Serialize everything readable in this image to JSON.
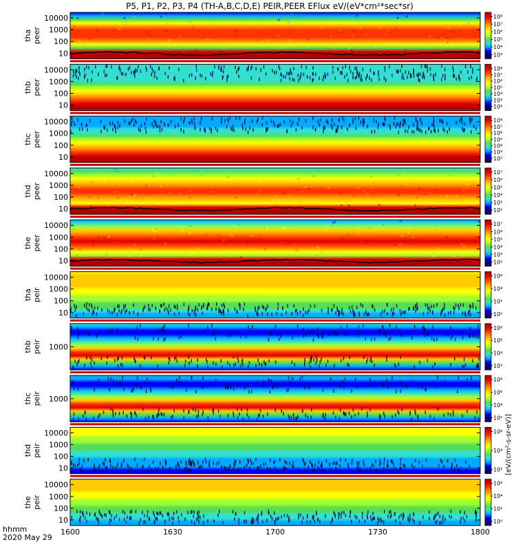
{
  "title": "P5, P1, P2, P3, P4 (TH-A,B,C,D,E) PEIR,PEER EFlux eV/(eV*cm²*sec*sr)",
  "colors": {
    "colormap": [
      "#2a0044",
      "#000080",
      "#0000ff",
      "#00aaff",
      "#33e0d0",
      "#55dd55",
      "#a0ff30",
      "#ffff00",
      "#ffcc00",
      "#ff8800",
      "#ff3300",
      "#dd0000",
      "#b00000"
    ]
  },
  "chart_data": {
    "type": "heatmap",
    "title": "P5, P1, P2, P3, P4 (TH-A,B,C,D,E) PEIR,PEER EFlux eV/(eV*cm²*sec*sr)",
    "x_axis": {
      "range": [
        "16:00",
        "18:00"
      ],
      "tick_labels": [
        "1600",
        "1630",
        "1700",
        "1730",
        "1800"
      ],
      "label_lines": [
        "hhmm",
        "2020 May 29"
      ]
    },
    "colorbar_label": "[eV/(cm²-s-sr-eV)]",
    "panels": [
      {
        "name": "tha peer",
        "ylabel_lines": [
          "tha",
          "peer"
        ],
        "yticks": [
          "10000",
          "1000",
          "100",
          "10"
        ],
        "cbar_ticks": [
          "10⁸",
          "10⁷",
          "10⁶",
          "10⁵",
          "10⁴",
          "10³"
        ],
        "profile": [
          2,
          3,
          5,
          7,
          9,
          10,
          10,
          10,
          9,
          7,
          5,
          11,
          12,
          12
        ],
        "noise_top": false,
        "noise_bottom": false,
        "spacecraft_potential": true
      },
      {
        "name": "thb peer",
        "ylabel_lines": [
          "thb",
          "peer"
        ],
        "yticks": [
          "10000",
          "1000",
          "100",
          "10"
        ],
        "cbar_ticks": [
          "10⁸",
          "10⁷",
          "10⁶",
          "10⁵",
          "10⁴",
          "10³",
          "10²"
        ],
        "profile": [
          4,
          4,
          4,
          4,
          4,
          4,
          5,
          6,
          7,
          8,
          9,
          10,
          11,
          12,
          12
        ],
        "noise_top": true,
        "noise_bottom": false,
        "spacecraft_potential": false
      },
      {
        "name": "thc peer",
        "ylabel_lines": [
          "thc",
          "peer"
        ],
        "yticks": [
          "10000",
          "1000",
          "100",
          "10"
        ],
        "cbar_ticks": [
          "10⁸",
          "10⁷",
          "10⁶",
          "10⁵",
          "10⁴",
          "10³",
          "10²"
        ],
        "profile": [
          3,
          3,
          3,
          3,
          4,
          4,
          5,
          6,
          7,
          8,
          9,
          10,
          11,
          12,
          12
        ],
        "noise_top": true,
        "noise_bottom": false,
        "spacecraft_potential": false
      },
      {
        "name": "thd peer",
        "ylabel_lines": [
          "thd",
          "peer"
        ],
        "yticks": [
          "10000",
          "1000",
          "100",
          "10"
        ],
        "cbar_ticks": [
          "10⁷",
          "10⁶",
          "10⁵",
          "10⁴",
          "10³",
          "10²"
        ],
        "profile": [
          4,
          5,
          6,
          7,
          8,
          9,
          10,
          10,
          9,
          8,
          7,
          11,
          12,
          12
        ],
        "noise_top": false,
        "noise_bottom": false,
        "spacecraft_potential": true
      },
      {
        "name": "the peer",
        "ylabel_lines": [
          "the",
          "peer"
        ],
        "yticks": [
          "10000",
          "1000",
          "100",
          "10"
        ],
        "cbar_ticks": [
          "10⁷",
          "10⁶",
          "10⁵",
          "10⁴",
          "10³",
          "10²"
        ],
        "profile": [
          3,
          4,
          6,
          8,
          9,
          10,
          11,
          10,
          9,
          7,
          6,
          11,
          12,
          12
        ],
        "noise_top": false,
        "noise_bottom": false,
        "spacecraft_potential": true
      },
      {
        "name": "tha peir",
        "ylabel_lines": [
          "tha",
          "peir"
        ],
        "yticks": [
          "10000",
          "1000",
          "100",
          "10"
        ],
        "cbar_ticks": [
          "10⁶",
          "10⁴",
          "10²",
          "10⁰"
        ],
        "profile": [
          7,
          8,
          8,
          8,
          8,
          7,
          7,
          6,
          6,
          5,
          5,
          4,
          3,
          3
        ],
        "noise_top": false,
        "noise_bottom": true,
        "spacecraft_potential": false
      },
      {
        "name": "thb peir",
        "ylabel_lines": [
          "thb",
          "peir"
        ],
        "yticks": [
          "1000"
        ],
        "cbar_ticks": [
          "10⁸",
          "10⁶",
          "10⁴",
          "10²"
        ],
        "profile": [
          4,
          3,
          2,
          2,
          3,
          4,
          6,
          8,
          10,
          11,
          8,
          5,
          3,
          2
        ],
        "noise_top": true,
        "noise_bottom": true,
        "spacecraft_potential": false
      },
      {
        "name": "thc peir",
        "ylabel_lines": [
          "thc",
          "peir"
        ],
        "yticks": [
          "1000"
        ],
        "cbar_ticks": [
          "10⁸",
          "10⁶",
          "10⁴",
          "10²"
        ],
        "profile": [
          3,
          3,
          2,
          2,
          3,
          4,
          6,
          8,
          10,
          11,
          8,
          5,
          3,
          2
        ],
        "noise_top": true,
        "noise_bottom": true,
        "spacecraft_potential": false
      },
      {
        "name": "thd peir",
        "ylabel_lines": [
          "thd",
          "peir"
        ],
        "yticks": [
          "10000",
          "1000",
          "100",
          "10"
        ],
        "cbar_ticks": [
          "10⁶",
          "10⁴",
          "10²"
        ],
        "profile": [
          7,
          7,
          7,
          6,
          6,
          5,
          5,
          4,
          4,
          3,
          3,
          3,
          2,
          2
        ],
        "noise_top": false,
        "noise_bottom": true,
        "spacecraft_potential": false
      },
      {
        "name": "the peir",
        "ylabel_lines": [
          "the",
          "peir"
        ],
        "yticks": [
          "10000",
          "1000",
          "100",
          "10"
        ],
        "cbar_ticks": [
          "10⁶",
          "10⁴",
          "10²",
          "10⁰"
        ],
        "profile": [
          8,
          8,
          8,
          8,
          7,
          7,
          6,
          6,
          5,
          5,
          4,
          4,
          3,
          3
        ],
        "noise_top": false,
        "noise_bottom": true,
        "spacecraft_potential": false
      }
    ]
  }
}
